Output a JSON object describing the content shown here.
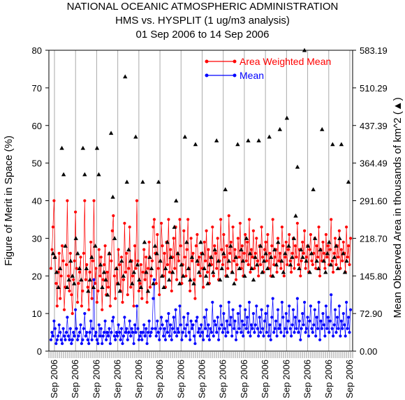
{
  "chart_data": {
    "type": "line",
    "title": [
      "NATIONAL OCEANIC ATMOSPHERIC ADMINISTRATION",
      "HMS vs. HYSPLIT (1 ug/m3 analysis)",
      "01 Sep 2006 to 14 Sep 2006"
    ],
    "ylabel": "Figure of Merit in Space (%)",
    "y2label": "Mean Observed Area in thousands of km^2 (▲)",
    "ylim": [
      0,
      80
    ],
    "y2lim": [
      0.0,
      583.19
    ],
    "yticks": [
      "0",
      "10",
      "20",
      "30",
      "40",
      "50",
      "60",
      "70",
      "80"
    ],
    "y2ticks": [
      "0.00",
      "72.90",
      "145.80",
      "218.70",
      "291.60",
      "364.49",
      "437.39",
      "510.29",
      "583.19"
    ],
    "x_tick_label": "Sep 2006",
    "x_tick_count": 15,
    "series": [
      {
        "name": "Area Weighted Mean",
        "color": "#ff0000",
        "values": [
          22,
          27,
          33,
          40,
          25,
          18,
          12,
          21,
          26,
          14,
          20,
          28,
          24,
          11,
          17,
          23,
          40,
          20,
          16,
          26,
          15,
          10,
          19,
          24,
          37,
          22,
          13,
          18,
          21,
          25,
          12,
          16,
          26,
          40,
          19,
          23,
          17,
          11,
          21,
          29,
          14,
          24,
          40,
          18,
          22,
          13,
          16,
          27,
          20,
          25,
          11,
          19,
          23,
          28,
          15,
          21,
          17,
          26,
          12,
          24,
          32,
          36,
          20,
          14,
          22,
          18,
          27,
          23,
          16,
          25,
          13,
          19,
          34,
          21,
          26,
          15,
          22,
          33,
          17,
          24,
          20,
          12,
          28,
          22,
          40,
          24,
          16,
          18,
          23,
          14,
          21,
          27,
          19,
          25,
          13,
          22,
          29,
          17,
          20,
          24,
          33,
          35,
          26,
          18,
          31,
          22,
          15,
          24,
          34,
          28,
          20,
          26,
          17,
          29,
          23,
          35,
          21,
          27,
          16,
          25,
          30,
          22,
          33,
          19,
          26,
          24,
          35,
          28,
          18,
          23,
          32,
          25,
          20,
          27,
          35,
          22,
          16,
          30,
          24,
          26,
          19,
          14,
          28,
          31,
          23,
          25,
          20,
          26,
          22,
          17,
          29,
          24,
          32,
          21,
          27,
          18,
          25,
          23,
          33,
          20,
          28,
          26,
          22,
          30,
          19,
          24,
          35,
          27,
          23,
          31,
          25,
          20,
          28,
          22,
          36,
          26,
          29,
          21,
          33,
          24,
          27,
          19,
          23,
          30,
          25,
          34,
          22,
          28,
          20,
          26,
          31,
          24,
          29,
          23,
          35,
          21,
          27,
          25,
          32,
          22,
          26,
          30,
          24,
          20,
          28,
          23,
          33,
          25,
          21,
          27,
          29,
          24,
          31,
          22,
          26,
          20,
          28,
          35,
          23,
          25,
          27,
          21,
          30,
          24,
          26,
          22,
          33,
          28,
          20,
          25,
          29,
          23,
          27,
          31,
          24,
          21,
          26,
          30,
          22,
          28,
          25,
          34,
          23,
          27,
          20,
          24,
          29,
          26,
          32,
          22,
          25,
          28,
          21,
          27,
          31,
          24,
          23,
          26,
          30,
          22,
          28,
          25,
          33,
          20,
          27,
          24,
          29,
          26,
          22,
          31,
          25,
          28,
          23,
          27,
          35,
          24,
          21,
          26,
          30,
          23,
          28,
          25,
          32,
          22,
          27,
          24,
          29,
          26,
          21,
          33,
          25,
          28,
          23,
          30
        ],
        "mean_values": [
          3,
          5,
          4,
          8,
          6,
          2,
          3,
          4,
          7,
          5,
          3,
          2,
          6,
          4,
          3,
          5,
          9,
          4,
          3,
          6,
          2,
          3,
          5,
          4,
          11,
          6,
          3,
          4,
          5,
          7,
          2,
          3,
          6,
          10,
          4,
          5,
          3,
          2,
          5,
          8,
          3,
          6,
          19,
          4,
          5,
          3,
          2,
          7,
          4,
          6,
          2,
          4,
          5,
          8,
          3,
          5,
          4,
          6,
          2,
          5,
          8,
          9,
          4,
          3,
          5,
          4,
          7,
          5,
          3,
          6,
          2,
          4,
          9,
          5,
          6,
          3,
          5,
          8,
          4,
          6,
          5,
          2,
          7,
          5,
          12,
          6,
          3,
          4,
          5,
          3,
          5,
          7,
          4,
          6,
          2,
          5,
          8,
          4,
          5,
          6,
          14,
          19,
          6,
          4,
          8,
          5,
          3,
          6,
          9,
          7,
          4,
          6,
          3,
          8,
          5,
          10,
          4,
          7,
          3,
          6,
          9,
          5,
          11,
          4,
          6,
          5,
          12,
          7,
          3,
          5,
          9,
          6,
          4,
          7,
          10,
          5,
          3,
          8,
          6,
          7,
          4,
          2,
          8,
          9,
          5,
          6,
          4,
          7,
          5,
          3,
          9,
          6,
          11,
          4,
          7,
          3,
          6,
          5,
          13,
          4,
          8,
          7,
          5,
          9,
          3,
          6,
          12,
          7,
          5,
          10,
          6,
          4,
          8,
          5,
          13,
          7,
          9,
          4,
          11,
          6,
          8,
          3,
          5,
          10,
          6,
          12,
          5,
          8,
          4,
          7,
          11,
          6,
          9,
          5,
          13,
          4,
          7,
          6,
          10,
          5,
          7,
          12,
          6,
          4,
          9,
          5,
          11,
          6,
          4,
          8,
          10,
          5,
          12,
          4,
          7,
          3,
          9,
          14,
          5,
          6,
          8,
          4,
          11,
          6,
          7,
          5,
          13,
          9,
          4,
          6,
          10,
          5,
          8,
          12,
          6,
          4,
          7,
          11,
          5,
          9,
          6,
          14,
          5,
          8,
          3,
          6,
          10,
          7,
          13,
          5,
          6,
          9,
          4,
          8,
          12,
          6,
          5,
          7,
          11,
          4,
          9,
          6,
          13,
          3,
          8,
          6,
          10,
          7,
          4,
          12,
          6,
          9,
          5,
          8,
          15,
          6,
          4,
          7,
          11,
          5,
          9,
          6,
          12,
          4,
          8,
          6,
          10,
          7,
          4,
          13,
          6,
          9,
          5,
          11
        ]
      },
      {
        "name": "Mean",
        "color": "#0000ff"
      }
    ],
    "area_triangles": [
      26,
      25,
      21,
      17,
      22,
      54,
      47,
      28,
      17,
      19,
      24,
      20,
      18,
      30,
      26,
      22,
      19,
      54,
      47,
      22,
      16,
      19,
      25,
      17,
      28,
      54,
      47,
      23,
      17,
      21,
      19,
      15,
      26,
      58,
      41,
      30,
      22,
      18,
      16,
      24,
      20,
      73,
      45,
      27,
      24,
      18,
      21,
      57,
      23,
      19,
      17,
      45,
      29,
      21,
      16,
      25,
      22,
      18,
      28,
      26,
      45,
      24,
      20,
      17,
      22,
      29,
      19,
      25,
      21,
      33,
      40,
      26,
      18,
      23,
      20,
      57,
      29,
      22,
      19,
      25,
      18,
      55,
      24,
      21,
      29,
      26,
      22,
      20,
      18,
      23,
      25,
      21,
      27,
      56,
      24,
      19,
      22,
      26,
      43,
      20,
      24,
      28,
      21,
      18,
      25,
      55,
      22,
      27,
      24,
      20,
      30,
      56,
      26,
      22,
      19,
      25,
      23,
      56,
      28,
      21,
      24,
      26,
      22,
      57,
      25,
      20,
      27,
      23,
      29,
      59,
      24,
      21,
      26,
      62,
      28,
      23,
      25,
      30,
      36,
      49,
      22,
      27,
      25,
      80,
      24,
      28,
      21,
      26,
      43,
      30,
      24,
      22,
      27,
      59,
      24,
      21,
      26,
      29,
      23,
      55,
      25,
      28,
      22,
      30,
      55,
      26,
      21,
      24,
      45
    ],
    "legend_position": "top-right"
  }
}
